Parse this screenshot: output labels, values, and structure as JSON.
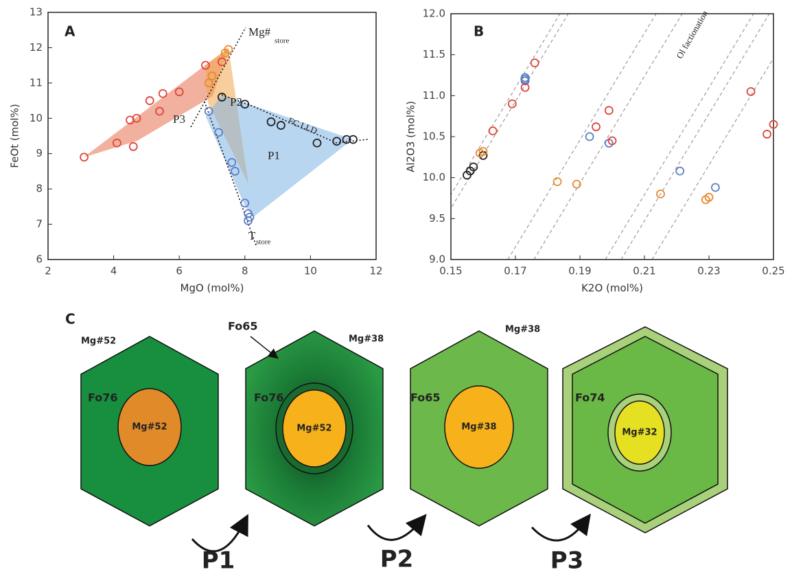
{
  "chart_data": [
    {
      "type": "scatter",
      "xlabel": "MgO (mol%)",
      "ylabel": "FeOt (mol%)",
      "xlim": [
        2,
        12
      ],
      "ylim": [
        6,
        13
      ],
      "xticks": [
        2,
        4,
        6,
        8,
        10,
        12
      ],
      "yticks": [
        6,
        7,
        8,
        9,
        10,
        11,
        12,
        13
      ],
      "annotations": [
        "A",
        "P1",
        "P2",
        "P3",
        "FC LLD",
        "Mg#",
        "store",
        "T",
        "store"
      ],
      "series": [
        {
          "color": "#e0443a",
          "x": [
            3.1,
            4.1,
            4.6,
            4.5,
            4.7,
            5.1,
            5.4,
            5.5,
            6.0,
            6.8,
            7.3
          ],
          "values": [
            8.9,
            9.3,
            9.2,
            9.95,
            10.0,
            10.5,
            10.2,
            10.7,
            10.75,
            11.5,
            11.6
          ]
        },
        {
          "color": "#e88a2c",
          "x": [
            6.9,
            7.0,
            7.4,
            7.5
          ],
          "values": [
            11.0,
            11.2,
            11.85,
            11.95
          ]
        },
        {
          "color": "#5b7fc4",
          "x": [
            6.9,
            7.2,
            7.6,
            7.7,
            8.0,
            8.1,
            8.15,
            8.1
          ],
          "values": [
            10.2,
            9.6,
            8.75,
            8.5,
            7.6,
            7.3,
            7.2,
            7.1
          ]
        },
        {
          "color": "#222222",
          "x": [
            7.3,
            8.0,
            8.8,
            9.1,
            10.2,
            10.8,
            11.1,
            11.3
          ],
          "values": [
            10.6,
            10.4,
            9.9,
            9.8,
            9.3,
            9.35,
            9.4,
            9.4
          ]
        }
      ]
    },
    {
      "type": "scatter",
      "xlabel": "K2O (mol%)",
      "ylabel": "Al2O3 (mol%)",
      "xlim": [
        0.15,
        0.25
      ],
      "ylim": [
        9,
        12
      ],
      "xticks": [
        0.15,
        0.17,
        0.19,
        0.21,
        0.23,
        0.25
      ],
      "yticks": [
        {
          "value": 9,
          "label": "9.0"
        },
        9.5,
        {
          "value": 10,
          "label": "10.0"
        },
        10.5,
        {
          "value": 11,
          "label": "11.0"
        },
        11.5,
        {
          "value": 12,
          "label": "12.0"
        }
      ],
      "annotations": [
        "B",
        "Ol factionation"
      ],
      "series": [
        {
          "color": "#222222",
          "x": [
            0.155,
            0.156,
            0.157,
            0.16
          ],
          "values": [
            10.03,
            10.08,
            10.13,
            10.27
          ]
        },
        {
          "color": "#e88a2c",
          "x": [
            0.159,
            0.16,
            0.183,
            0.189,
            0.215,
            0.229,
            0.23
          ],
          "values": [
            10.3,
            10.32,
            9.95,
            9.92,
            9.8,
            9.73,
            9.76
          ]
        },
        {
          "color": "#5b7fc4",
          "x": [
            0.173,
            0.173,
            0.173,
            0.193,
            0.199,
            0.221,
            0.232
          ],
          "values": [
            11.18,
            11.2,
            11.22,
            10.5,
            10.42,
            10.08,
            9.88
          ]
        },
        {
          "color": "#e0443a",
          "x": [
            0.176,
            0.173,
            0.169,
            0.163,
            0.195,
            0.199,
            0.2,
            0.243,
            0.248,
            0.25
          ],
          "values": [
            11.4,
            11.1,
            10.9,
            10.57,
            10.62,
            10.82,
            10.45,
            11.05,
            10.53,
            10.65
          ]
        }
      ]
    }
  ],
  "diagram": {
    "label": "C",
    "crystals": [
      {
        "rim_label": "Mg#52",
        "zone": "Fo76",
        "core": "Mg#52"
      },
      {
        "callout": "Fo65",
        "rim_label": "Mg#38",
        "zone": "Fo76",
        "core": "Mg#52"
      },
      {
        "rim_label": "Mg#38",
        "zone": "Fo65",
        "core": "Mg#38"
      },
      {
        "zone": "Fo74",
        "core": "Mg#32"
      }
    ],
    "steps": [
      "P1",
      "P2",
      "P3"
    ]
  }
}
